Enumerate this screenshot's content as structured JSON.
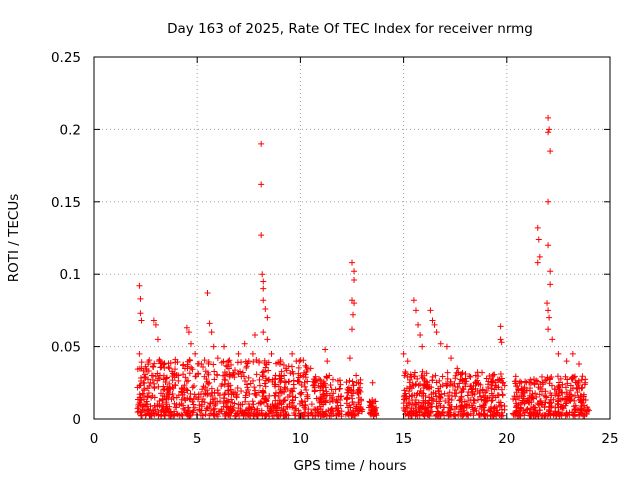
{
  "chart_data": {
    "type": "scatter",
    "title": "Day 163 of 2025, Rate Of TEC Index for receiver nrmg",
    "xlabel": "GPS time / hours",
    "ylabel": "ROTI / TECUs",
    "xlim": [
      0,
      25
    ],
    "ylim": [
      0,
      0.25
    ],
    "xticks": [
      0,
      5,
      10,
      15,
      20,
      25
    ],
    "xtick_labels": [
      "0",
      "5",
      "10",
      "15",
      "20",
      "25"
    ],
    "yticks": [
      0,
      0.05,
      0.1,
      0.15,
      0.2,
      0.25
    ],
    "ytick_labels": [
      "0",
      "0.05",
      "0.1",
      "0.15",
      "0.2",
      "0.25"
    ],
    "grid": true,
    "marker": "+",
    "series": [
      {
        "name": "ROTI",
        "color": "#ff0000",
        "points": [
          [
            2.2,
            0.092
          ],
          [
            2.25,
            0.083
          ],
          [
            2.25,
            0.073
          ],
          [
            2.3,
            0.068
          ],
          [
            2.2,
            0.045
          ],
          [
            2.3,
            0.035
          ],
          [
            2.4,
            0.025
          ],
          [
            2.6,
            0.015
          ],
          [
            2.8,
            0.03
          ],
          [
            2.9,
            0.068
          ],
          [
            3.0,
            0.065
          ],
          [
            3.1,
            0.055
          ],
          [
            3.2,
            0.04
          ],
          [
            3.5,
            0.028
          ],
          [
            3.8,
            0.022
          ],
          [
            4.1,
            0.03
          ],
          [
            4.5,
            0.063
          ],
          [
            4.6,
            0.06
          ],
          [
            4.7,
            0.052
          ],
          [
            4.9,
            0.045
          ],
          [
            5.2,
            0.038
          ],
          [
            5.5,
            0.087
          ],
          [
            5.6,
            0.066
          ],
          [
            5.7,
            0.06
          ],
          [
            5.8,
            0.05
          ],
          [
            6.0,
            0.042
          ],
          [
            6.3,
            0.05
          ],
          [
            6.5,
            0.04
          ],
          [
            6.7,
            0.03
          ],
          [
            7.0,
            0.045
          ],
          [
            7.3,
            0.052
          ],
          [
            7.5,
            0.04
          ],
          [
            7.7,
            0.045
          ],
          [
            7.8,
            0.058
          ],
          [
            8.1,
            0.19
          ],
          [
            8.1,
            0.162
          ],
          [
            8.1,
            0.127
          ],
          [
            8.15,
            0.1
          ],
          [
            8.2,
            0.095
          ],
          [
            8.2,
            0.09
          ],
          [
            8.2,
            0.082
          ],
          [
            8.3,
            0.076
          ],
          [
            8.4,
            0.07
          ],
          [
            8.2,
            0.06
          ],
          [
            8.4,
            0.055
          ],
          [
            8.6,
            0.045
          ],
          [
            9.0,
            0.03
          ],
          [
            9.3,
            0.035
          ],
          [
            9.6,
            0.045
          ],
          [
            9.8,
            0.04
          ],
          [
            10.0,
            0.03
          ],
          [
            10.2,
            0.025
          ],
          [
            10.5,
            0.035
          ],
          [
            10.7,
            0.025
          ],
          [
            11.2,
            0.048
          ],
          [
            11.3,
            0.04
          ],
          [
            11.4,
            0.03
          ],
          [
            12.5,
            0.108
          ],
          [
            12.6,
            0.102
          ],
          [
            12.6,
            0.096
          ],
          [
            12.5,
            0.082
          ],
          [
            12.6,
            0.08
          ],
          [
            12.55,
            0.072
          ],
          [
            12.5,
            0.062
          ],
          [
            12.4,
            0.042
          ],
          [
            12.7,
            0.03
          ],
          [
            13.5,
            0.025
          ],
          [
            15.0,
            0.045
          ],
          [
            15.2,
            0.04
          ],
          [
            15.5,
            0.082
          ],
          [
            15.6,
            0.075
          ],
          [
            15.7,
            0.065
          ],
          [
            15.8,
            0.058
          ],
          [
            15.9,
            0.05
          ],
          [
            16.3,
            0.075
          ],
          [
            16.4,
            0.068
          ],
          [
            16.5,
            0.065
          ],
          [
            16.6,
            0.06
          ],
          [
            16.8,
            0.052
          ],
          [
            17.1,
            0.05
          ],
          [
            17.3,
            0.042
          ],
          [
            17.6,
            0.035
          ],
          [
            18.0,
            0.028
          ],
          [
            18.5,
            0.03
          ],
          [
            18.8,
            0.032
          ],
          [
            19.3,
            0.025
          ],
          [
            19.7,
            0.064
          ],
          [
            19.7,
            0.055
          ],
          [
            19.75,
            0.053
          ],
          [
            19.6,
            0.022
          ],
          [
            21.5,
            0.132
          ],
          [
            21.55,
            0.124
          ],
          [
            21.6,
            0.112
          ],
          [
            21.5,
            0.108
          ],
          [
            22.0,
            0.208
          ],
          [
            22.05,
            0.2
          ],
          [
            22.0,
            0.198
          ],
          [
            22.1,
            0.185
          ],
          [
            22.0,
            0.15
          ],
          [
            22.0,
            0.12
          ],
          [
            22.1,
            0.102
          ],
          [
            22.1,
            0.093
          ],
          [
            21.95,
            0.08
          ],
          [
            22.0,
            0.075
          ],
          [
            22.05,
            0.07
          ],
          [
            22.0,
            0.062
          ],
          [
            22.2,
            0.055
          ],
          [
            22.5,
            0.045
          ],
          [
            22.9,
            0.04
          ],
          [
            23.2,
            0.045
          ],
          [
            23.5,
            0.038
          ],
          [
            23.8,
            0.025
          ]
        ]
      }
    ]
  }
}
